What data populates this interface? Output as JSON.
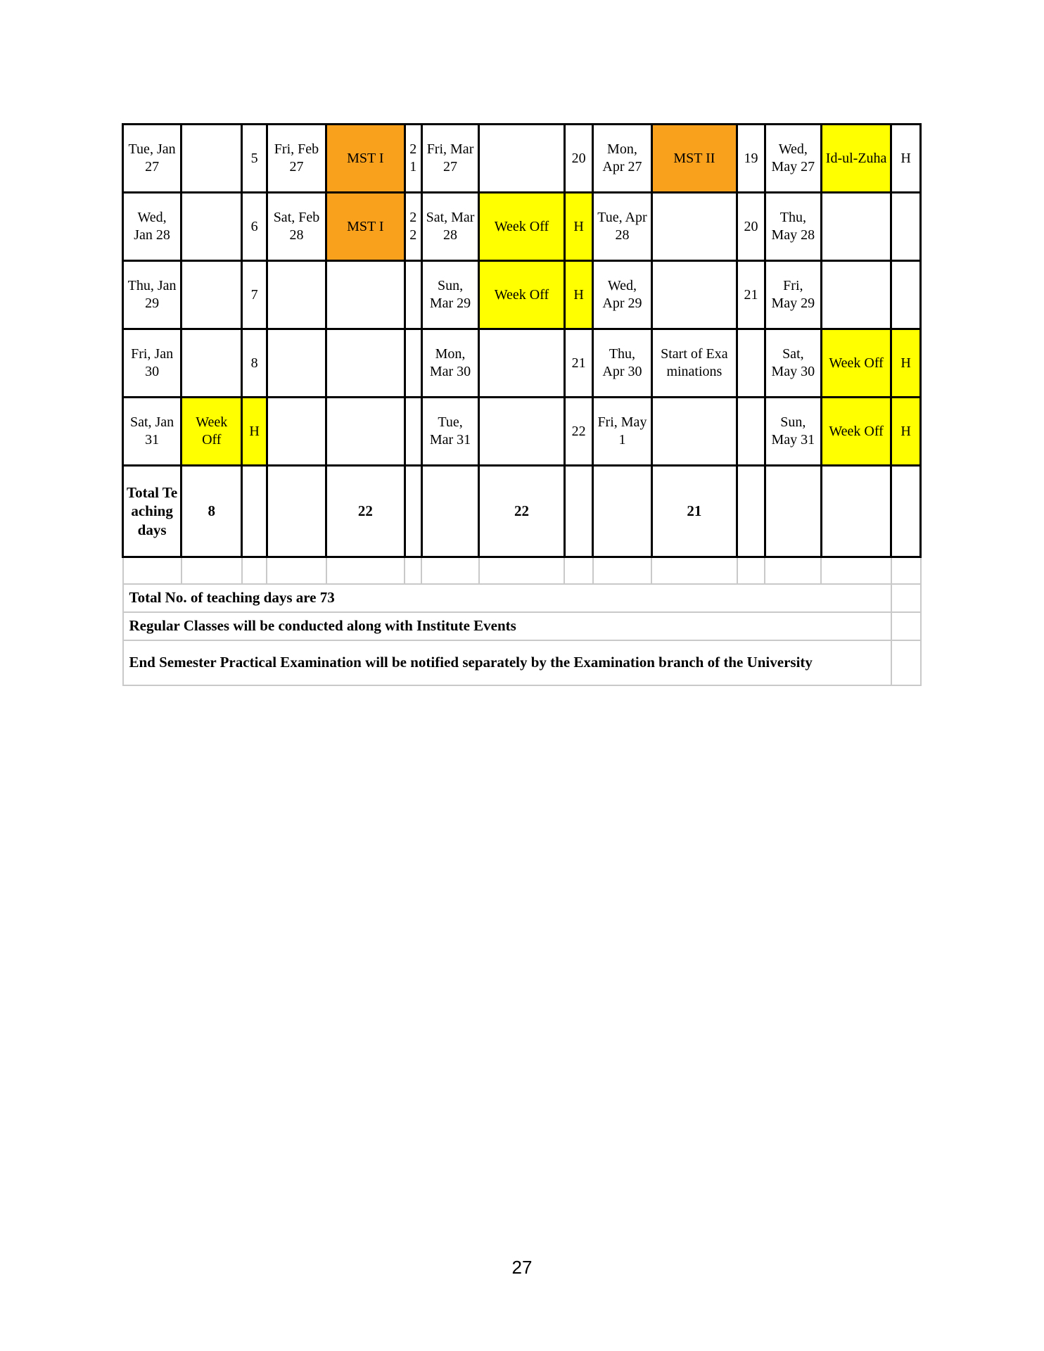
{
  "document": {
    "page_number": "27"
  },
  "colors": {
    "mst_orange": "#F9A01C",
    "holiday_yellow": "#FFFF00",
    "grid_black": "#000000",
    "grid_gray": "#C9C9C9"
  },
  "calendar": {
    "rows": [
      {
        "cells": [
          "Tue, Jan 27",
          "",
          "5",
          "Fri, Feb 27",
          "MST I",
          "21",
          "Fri, Mar 27",
          "",
          "20",
          "Mon, Apr 27",
          "MST II",
          "19",
          "Wed, May 27",
          "Id-ul-Zuha",
          "H"
        ]
      },
      {
        "cells": [
          "Wed, Jan 28",
          "",
          "6",
          "Sat, Feb 28",
          "MST I",
          "22",
          "Sat, Mar 28",
          "Week Off",
          "H",
          "Tue, Apr 28",
          "",
          "20",
          "Thu, May 28",
          "",
          ""
        ]
      },
      {
        "cells": [
          "Thu, Jan 29",
          "",
          "7",
          "",
          "",
          "",
          "Sun, Mar 29",
          "Week Off",
          "H",
          "Wed, Apr 29",
          "",
          "21",
          "Fri, May 29",
          "",
          ""
        ]
      },
      {
        "cells": [
          "Fri, Jan 30",
          "",
          "8",
          "",
          "",
          "",
          "Mon, Mar 30",
          "",
          "21",
          "Thu, Apr 30",
          "Start of Examinations",
          "",
          "Sat, May 30",
          "Week Off",
          "H"
        ]
      },
      {
        "cells": [
          "Sat, Jan 31",
          "Week Off",
          "H",
          "",
          "",
          "",
          "Tue, Mar 31",
          "",
          "22",
          "Fri, May 1",
          "",
          "",
          "Sun, May 31",
          "Week Off",
          "H"
        ]
      }
    ],
    "totals": {
      "label": "Total Teaching days",
      "jan": "8",
      "feb": "22",
      "mar": "22",
      "apr": "21"
    },
    "notes": [
      "Total No. of teaching days are 73",
      "Regular Classes will be conducted along with Institute Events",
      "End Semester Practical Examination will be notified separately by the Examination branch of the University"
    ]
  }
}
